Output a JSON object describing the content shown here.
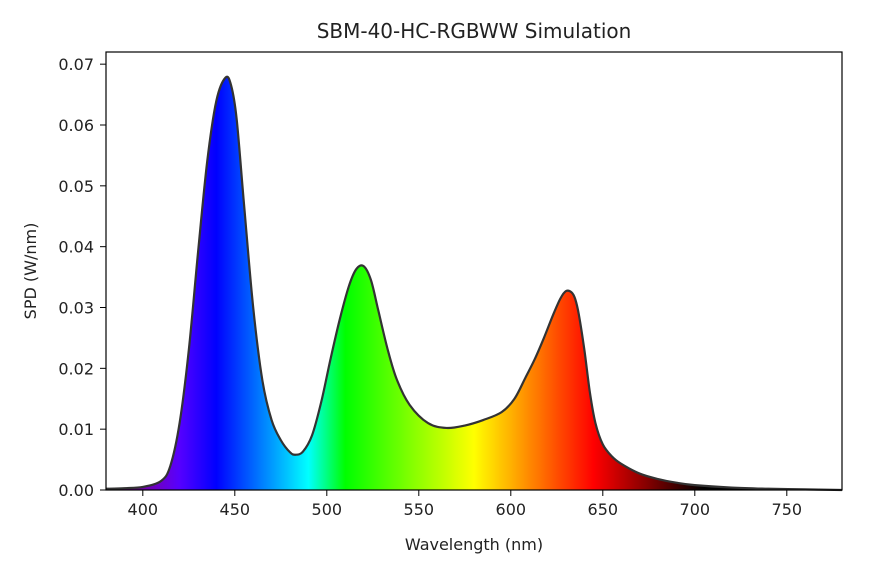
{
  "chart_data": {
    "type": "area",
    "title": "SBM-40-HC-RGBWW Simulation",
    "xlabel": "Wavelength (nm)",
    "ylabel": "SPD (W/nm)",
    "xlim": [
      380,
      780
    ],
    "ylim": [
      0,
      0.072
    ],
    "x_ticks": [
      400,
      450,
      500,
      550,
      600,
      650,
      700,
      750
    ],
    "x_tick_labels": [
      "400",
      "450",
      "500",
      "550",
      "600",
      "650",
      "700",
      "750"
    ],
    "y_ticks": [
      0,
      0.01,
      0.02,
      0.03,
      0.04,
      0.05,
      0.06,
      0.07
    ],
    "y_tick_labels": [
      "0.00",
      "0.01",
      "0.02",
      "0.03",
      "0.04",
      "0.05",
      "0.06",
      "0.07"
    ],
    "grid": false,
    "legend": "none",
    "line_color": "#333333",
    "fill": "visible-spectrum colors by wavelength",
    "series": [
      {
        "x": [
          380,
          390,
          400,
          410,
          415,
          420,
          425,
          430,
          435,
          440,
          445,
          448,
          451,
          455,
          460,
          465,
          470,
          475,
          480,
          483,
          487,
          492,
          497,
          502,
          507,
          512,
          516,
          520,
          524,
          528,
          533,
          538,
          545,
          555,
          565,
          575,
          585,
          595,
          602,
          608,
          613,
          618,
          623,
          627,
          630,
          633,
          635,
          637,
          640,
          643,
          646,
          650,
          655,
          660,
          670,
          680,
          690,
          700,
          720,
          740,
          760,
          780
        ],
        "values": [
          0.0002,
          0.0003,
          0.0005,
          0.0015,
          0.004,
          0.011,
          0.023,
          0.039,
          0.054,
          0.064,
          0.0678,
          0.0665,
          0.061,
          0.047,
          0.03,
          0.018,
          0.0115,
          0.0082,
          0.0062,
          0.0058,
          0.0063,
          0.009,
          0.0145,
          0.0215,
          0.028,
          0.0335,
          0.0363,
          0.0368,
          0.0345,
          0.0295,
          0.0232,
          0.0182,
          0.014,
          0.011,
          0.0102,
          0.0106,
          0.0115,
          0.0128,
          0.015,
          0.0185,
          0.0215,
          0.025,
          0.0288,
          0.0315,
          0.0327,
          0.0325,
          0.0314,
          0.0288,
          0.023,
          0.016,
          0.011,
          0.0075,
          0.0055,
          0.0043,
          0.0027,
          0.0018,
          0.0012,
          0.0008,
          0.0004,
          0.0002,
          0.0001,
          0.0
        ]
      }
    ]
  }
}
